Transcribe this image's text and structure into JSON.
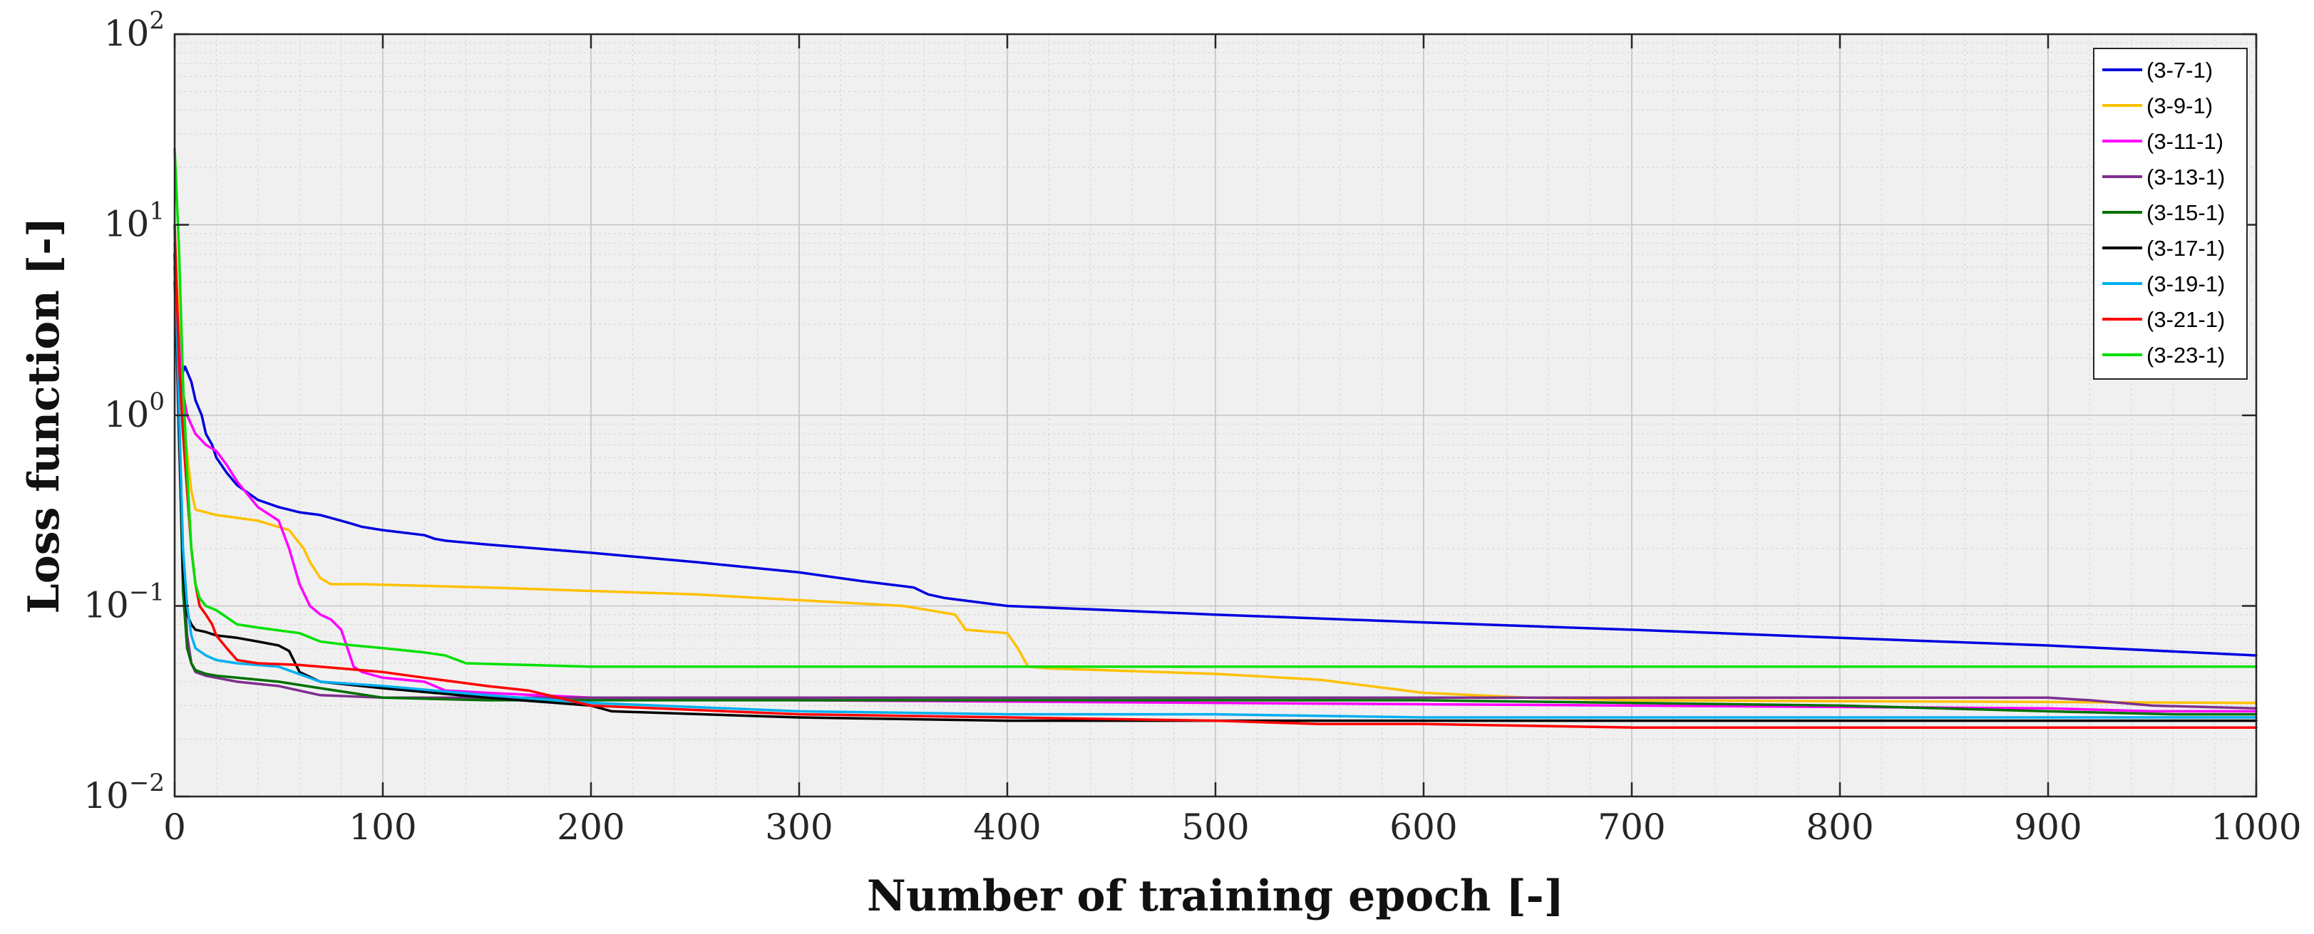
{
  "chart_data": {
    "type": "line",
    "title": "",
    "xlabel": "Number of training epoch [-]",
    "ylabel": "Loss function [-]",
    "xlim": [
      0,
      1000
    ],
    "ylim": [
      0.01,
      100
    ],
    "yscale": "log",
    "grid": true,
    "minor_grid": true,
    "legend_position": "top-right",
    "x_ticks": [
      0,
      100,
      200,
      300,
      400,
      500,
      600,
      700,
      800,
      900,
      1000
    ],
    "x_tick_labels": [
      "0",
      "100",
      "200",
      "300",
      "400",
      "500",
      "600",
      "700",
      "800",
      "900",
      "1000"
    ],
    "y_ticks": [
      0.01,
      0.1,
      1,
      10,
      100
    ],
    "y_tick_labels": [
      {
        "base": "10",
        "exp": "−2"
      },
      {
        "base": "10",
        "exp": "−1"
      },
      {
        "base": "10",
        "exp": "0"
      },
      {
        "base": "10",
        "exp": "1"
      },
      {
        "base": "10",
        "exp": "2"
      }
    ],
    "series": [
      {
        "name": "(3-7-1)",
        "color": "#0000e0",
        "x": [
          0,
          2,
          5,
          8,
          10,
          13,
          15,
          18,
          20,
          25,
          30,
          40,
          50,
          60,
          70,
          80,
          85,
          90,
          100,
          120,
          125,
          130,
          150,
          200,
          250,
          300,
          330,
          355,
          362,
          370,
          400,
          450,
          500,
          600,
          700,
          800,
          900,
          1000
        ],
        "y": [
          5.0,
          1.5,
          1.8,
          1.5,
          1.2,
          1.0,
          0.8,
          0.7,
          0.6,
          0.5,
          0.43,
          0.36,
          0.33,
          0.31,
          0.3,
          0.28,
          0.27,
          0.26,
          0.25,
          0.235,
          0.225,
          0.22,
          0.21,
          0.19,
          0.17,
          0.15,
          0.135,
          0.125,
          0.115,
          0.11,
          0.1,
          0.095,
          0.09,
          0.082,
          0.075,
          0.068,
          0.062,
          0.055
        ]
      },
      {
        "name": "(3-9-1)",
        "color": "#ffc000",
        "x": [
          0,
          2,
          5,
          8,
          10,
          15,
          20,
          40,
          55,
          62,
          65,
          70,
          75,
          90,
          150,
          250,
          350,
          375,
          380,
          400,
          405,
          410,
          420,
          500,
          550,
          600,
          650,
          700,
          1000
        ],
        "y": [
          9.0,
          3.0,
          0.8,
          0.4,
          0.32,
          0.31,
          0.3,
          0.28,
          0.25,
          0.2,
          0.17,
          0.14,
          0.13,
          0.13,
          0.125,
          0.115,
          0.1,
          0.09,
          0.075,
          0.072,
          0.06,
          0.048,
          0.047,
          0.044,
          0.041,
          0.035,
          0.033,
          0.032,
          0.031
        ]
      },
      {
        "name": "(3-11-1)",
        "color": "#ff00ff",
        "x": [
          0,
          3,
          6,
          10,
          15,
          20,
          25,
          30,
          40,
          50,
          55,
          60,
          65,
          70,
          75,
          80,
          83,
          86,
          90,
          100,
          120,
          130,
          150,
          200,
          300,
          500,
          700,
          900,
          950,
          1000
        ],
        "y": [
          7.0,
          1.5,
          1.0,
          0.8,
          0.7,
          0.65,
          0.55,
          0.45,
          0.33,
          0.28,
          0.2,
          0.13,
          0.1,
          0.09,
          0.085,
          0.075,
          0.06,
          0.048,
          0.045,
          0.042,
          0.04,
          0.036,
          0.035,
          0.033,
          0.032,
          0.031,
          0.03,
          0.029,
          0.028,
          0.028
        ]
      },
      {
        "name": "(3-13-1)",
        "color": "#7e2f8e",
        "x": [
          0,
          2,
          4,
          6,
          8,
          10,
          15,
          20,
          30,
          50,
          70,
          100,
          150,
          200,
          400,
          600,
          800,
          900,
          920,
          950,
          1000
        ],
        "y": [
          6.0,
          0.8,
          0.15,
          0.07,
          0.05,
          0.045,
          0.043,
          0.042,
          0.04,
          0.038,
          0.034,
          0.033,
          0.033,
          0.033,
          0.033,
          0.033,
          0.033,
          0.033,
          0.032,
          0.03,
          0.029
        ]
      },
      {
        "name": "(3-15-1)",
        "color": "#007000",
        "x": [
          0,
          2,
          4,
          6,
          8,
          10,
          15,
          20,
          30,
          50,
          70,
          100,
          150,
          200,
          400,
          600,
          700,
          800,
          900,
          960,
          1000
        ],
        "y": [
          7.0,
          1.0,
          0.12,
          0.06,
          0.05,
          0.046,
          0.044,
          0.043,
          0.042,
          0.04,
          0.037,
          0.033,
          0.032,
          0.032,
          0.032,
          0.032,
          0.031,
          0.03,
          0.028,
          0.027,
          0.027
        ]
      },
      {
        "name": "(3-17-1)",
        "color": "#000000",
        "x": [
          0,
          2,
          4,
          6,
          8,
          10,
          15,
          20,
          30,
          40,
          50,
          55,
          60,
          70,
          100,
          150,
          200,
          210,
          300,
          400,
          500,
          600,
          700,
          800,
          900,
          1000
        ],
        "y": [
          7.0,
          1.0,
          0.15,
          0.09,
          0.08,
          0.075,
          0.073,
          0.07,
          0.068,
          0.065,
          0.062,
          0.058,
          0.045,
          0.04,
          0.037,
          0.033,
          0.03,
          0.028,
          0.026,
          0.025,
          0.025,
          0.025,
          0.025,
          0.025,
          0.025,
          0.025
        ]
      },
      {
        "name": "(3-19-1)",
        "color": "#00b0f0",
        "x": [
          0,
          2,
          4,
          6,
          8,
          10,
          15,
          20,
          30,
          50,
          70,
          100,
          150,
          200,
          300,
          400,
          500,
          600,
          700,
          800,
          900,
          1000
        ],
        "y": [
          8.0,
          1.2,
          0.2,
          0.1,
          0.07,
          0.06,
          0.055,
          0.052,
          0.05,
          0.048,
          0.04,
          0.038,
          0.034,
          0.031,
          0.028,
          0.027,
          0.027,
          0.026,
          0.026,
          0.026,
          0.026,
          0.026
        ]
      },
      {
        "name": "(3-21-1)",
        "color": "#ff0000",
        "x": [
          0,
          2,
          4,
          6,
          8,
          10,
          12,
          15,
          18,
          20,
          25,
          30,
          40,
          60,
          80,
          100,
          120,
          150,
          170,
          200,
          300,
          400,
          500,
          550,
          600,
          700,
          800,
          900,
          1000
        ],
        "y": [
          10.0,
          2.0,
          0.8,
          0.4,
          0.2,
          0.13,
          0.1,
          0.09,
          0.08,
          0.07,
          0.06,
          0.052,
          0.05,
          0.049,
          0.047,
          0.045,
          0.042,
          0.038,
          0.036,
          0.03,
          0.027,
          0.026,
          0.025,
          0.024,
          0.024,
          0.023,
          0.023,
          0.023,
          0.023
        ]
      },
      {
        "name": "(3-23-1)",
        "color": "#00e000",
        "x": [
          0,
          2,
          4,
          6,
          8,
          10,
          12,
          15,
          20,
          30,
          40,
          60,
          70,
          80,
          100,
          120,
          130,
          140,
          200,
          400,
          600,
          800,
          1000
        ],
        "y": [
          25.0,
          8.0,
          1.5,
          0.5,
          0.2,
          0.13,
          0.11,
          0.1,
          0.095,
          0.08,
          0.077,
          0.072,
          0.065,
          0.063,
          0.06,
          0.057,
          0.055,
          0.05,
          0.048,
          0.048,
          0.048,
          0.048,
          0.048
        ]
      }
    ]
  }
}
